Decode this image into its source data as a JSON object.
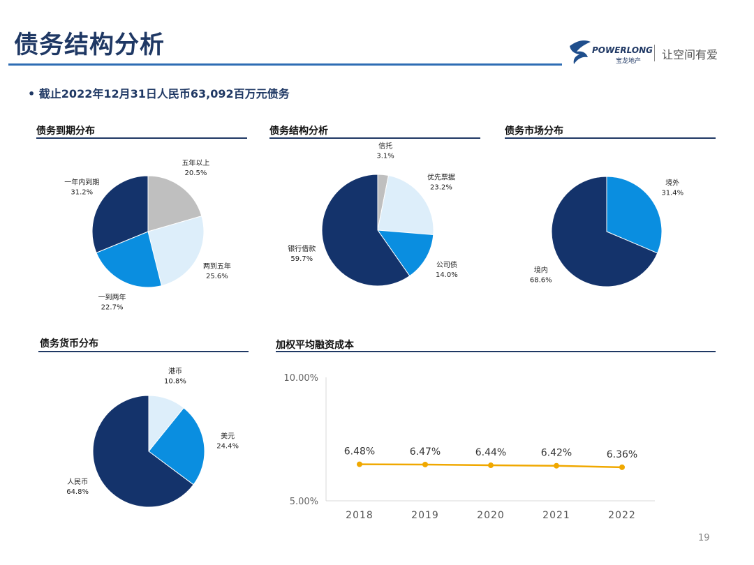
{
  "header": {
    "title": "债务结构分析",
    "logo_text": "POWERLONG",
    "logo_sub": "宝龙地产",
    "slogan": "让空间有爱"
  },
  "bullet": "•  截止2022年12月31日人民币63,092百万元债务",
  "page_number": "19",
  "colors": {
    "navy": "#14336b",
    "blue": "#0a8ee0",
    "light": "#ddeefa",
    "grey": "#bfbfbf",
    "line": "#f0a800"
  },
  "chart_data": [
    {
      "type": "pie",
      "title": "债务到期分布",
      "slices": [
        {
          "label": "五年以上",
          "value": 20.5,
          "display": "20.5%",
          "color": "#bfbfbf"
        },
        {
          "label": "两到五年",
          "value": 25.6,
          "display": "25.6%",
          "color": "#ddeefa"
        },
        {
          "label": "一到两年",
          "value": 22.7,
          "display": "22.7%",
          "color": "#0a8ee0"
        },
        {
          "label": "一年内到期",
          "value": 31.2,
          "display": "31.2%",
          "color": "#14336b"
        }
      ]
    },
    {
      "type": "pie",
      "title": "债务结构分析",
      "slices": [
        {
          "label": "信托",
          "value": 3.1,
          "display": "3.1%",
          "color": "#bfbfbf"
        },
        {
          "label": "优先票据",
          "value": 23.2,
          "display": "23.2%",
          "color": "#ddeefa"
        },
        {
          "label": "公司债",
          "value": 14.0,
          "display": "14.0%",
          "color": "#0a8ee0"
        },
        {
          "label": "银行借款",
          "value": 59.7,
          "display": "59.7%",
          "color": "#14336b"
        }
      ]
    },
    {
      "type": "pie",
      "title": "债务市场分布",
      "slices": [
        {
          "label": "境外",
          "value": 31.4,
          "display": "31.4%",
          "color": "#0a8ee0"
        },
        {
          "label": "境内",
          "value": 68.6,
          "display": "68.6%",
          "color": "#14336b"
        }
      ]
    },
    {
      "type": "pie",
      "title": "债务货币分布",
      "slices": [
        {
          "label": "港币",
          "value": 10.8,
          "display": "10.8%",
          "color": "#ddeefa"
        },
        {
          "label": "美元",
          "value": 24.4,
          "display": "24.4%",
          "color": "#0a8ee0"
        },
        {
          "label": "人民币",
          "value": 64.8,
          "display": "64.8%",
          "color": "#14336b"
        }
      ]
    },
    {
      "type": "line",
      "title": "加权平均融资成本",
      "categories": [
        "2018",
        "2019",
        "2020",
        "2021",
        "2022"
      ],
      "values": [
        6.48,
        6.47,
        6.44,
        6.42,
        6.36
      ],
      "labels": [
        "6.48%",
        "6.47%",
        "6.44%",
        "6.42%",
        "6.36%"
      ],
      "ylim": [
        5,
        10
      ],
      "yticks": [
        "5.00%",
        "10.00%"
      ],
      "color": "#f0a800"
    }
  ]
}
